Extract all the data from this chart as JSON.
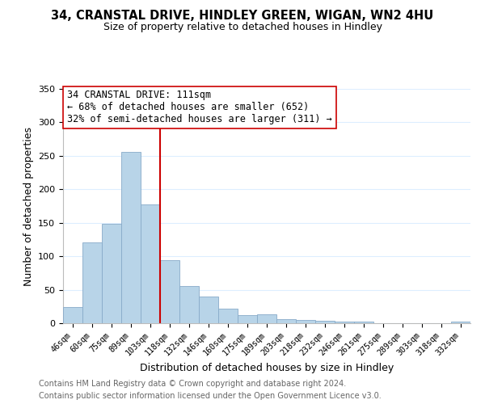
{
  "title1": "34, CRANSTAL DRIVE, HINDLEY GREEN, WIGAN, WN2 4HU",
  "title2": "Size of property relative to detached houses in Hindley",
  "xlabel": "Distribution of detached houses by size in Hindley",
  "ylabel": "Number of detached properties",
  "categories": [
    "46sqm",
    "60sqm",
    "75sqm",
    "89sqm",
    "103sqm",
    "118sqm",
    "132sqm",
    "146sqm",
    "160sqm",
    "175sqm",
    "189sqm",
    "203sqm",
    "218sqm",
    "232sqm",
    "246sqm",
    "261sqm",
    "275sqm",
    "289sqm",
    "303sqm",
    "318sqm",
    "332sqm"
  ],
  "values": [
    24,
    121,
    148,
    256,
    178,
    94,
    55,
    40,
    22,
    12,
    13,
    6,
    5,
    4,
    3,
    3,
    0,
    0,
    0,
    0,
    2
  ],
  "bar_color": "#b8d4e8",
  "bar_edge_color": "#88aac8",
  "vline_x": 5,
  "vline_color": "#cc0000",
  "annotation_title": "34 CRANSTAL DRIVE: 111sqm",
  "annotation_line1": "← 68% of detached houses are smaller (652)",
  "annotation_line2": "32% of semi-detached houses are larger (311) →",
  "annotation_box_color": "#ffffff",
  "annotation_box_edge": "#cc0000",
  "ylim": [
    0,
    350
  ],
  "yticks": [
    0,
    50,
    100,
    150,
    200,
    250,
    300,
    350
  ],
  "footer1": "Contains HM Land Registry data © Crown copyright and database right 2024.",
  "footer2": "Contains public sector information licensed under the Open Government Licence v3.0.",
  "bg_color": "#ffffff",
  "grid_color": "#ddeeff"
}
